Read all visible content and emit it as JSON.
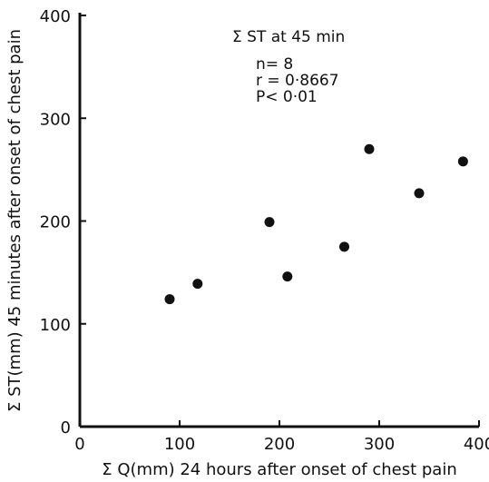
{
  "chart_data": {
    "type": "scatter",
    "title": "",
    "xlabel": "Σ Q(mm) 24 hours after onset of chest pain",
    "ylabel": "Σ ST(mm) 45 minutes after onset of chest pain",
    "xlim": [
      0,
      400
    ],
    "ylim": [
      0,
      400
    ],
    "x_ticks": [
      "0",
      "100",
      "200",
      "300",
      "400"
    ],
    "y_ticks": [
      "0",
      "100",
      "200",
      "300",
      "400"
    ],
    "grid": false,
    "points": [
      {
        "x": 90,
        "y": 124
      },
      {
        "x": 118,
        "y": 139
      },
      {
        "x": 190,
        "y": 199
      },
      {
        "x": 208,
        "y": 146
      },
      {
        "x": 265,
        "y": 175
      },
      {
        "x": 290,
        "y": 270
      },
      {
        "x": 340,
        "y": 227
      },
      {
        "x": 384,
        "y": 258
      }
    ],
    "annotation": {
      "heading": "Σ ST at 45 min",
      "lines": [
        "n= 8",
        "r = 0·8667",
        "P< 0·01"
      ]
    }
  }
}
